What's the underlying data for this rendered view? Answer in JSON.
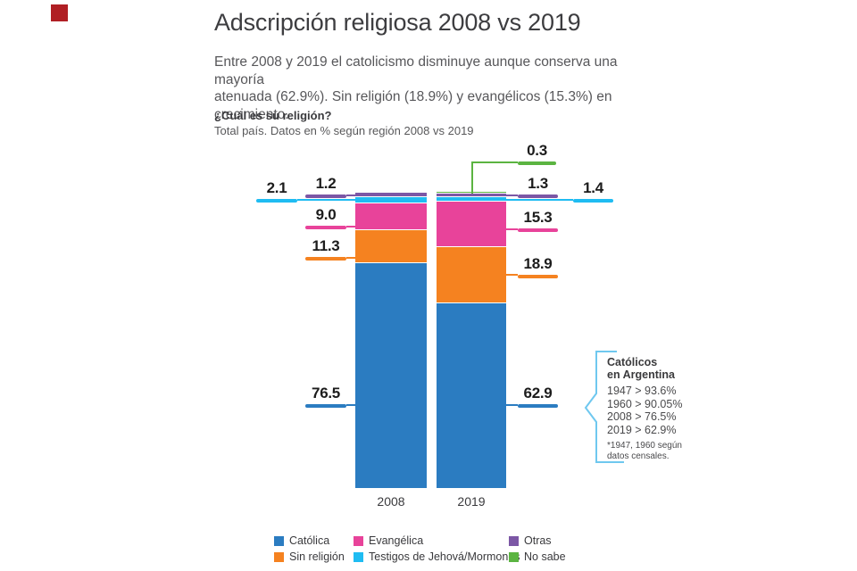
{
  "page": {
    "title": "Adscripción religiosa 2008 vs 2019",
    "subtitle_lines": [
      "Entre 2008 y 2019 el catolicismo disminuye aunque conserva una mayoría",
      "atenuada (62.9%). Sin religión (18.9%) y evangélicos (15.3%) en crecimiento."
    ],
    "question": "¿Cuál es su religión?",
    "note": "Total país. Datos en % según región 2008 vs 2019",
    "brand_color": "#b01f24"
  },
  "chart_data": {
    "type": "bar",
    "stacked": true,
    "unit": "%",
    "categories": [
      "2008",
      "2019"
    ],
    "series": [
      {
        "name": "Católica",
        "color": "#2b7cc1",
        "values": [
          76.5,
          62.9
        ]
      },
      {
        "name": "Sin religión",
        "color": "#f58220",
        "values": [
          11.3,
          18.9
        ]
      },
      {
        "name": "Evangélica",
        "color": "#e8439a",
        "values": [
          9.0,
          15.3
        ]
      },
      {
        "name": "Testigos de Jehová/Mormones",
        "color": "#1fbcf2",
        "values": [
          2.1,
          1.4
        ]
      },
      {
        "name": "Otras",
        "color": "#7c57a5",
        "values": [
          1.2,
          1.3
        ]
      },
      {
        "name": "No sabe",
        "color": "#5bb441",
        "values": [
          null,
          0.3
        ]
      }
    ],
    "annotations": [
      {
        "value": "2.1",
        "series": "Testigos de Jehová/Mormones",
        "category": "2008"
      },
      {
        "value": "1.2",
        "series": "Otras",
        "category": "2008"
      },
      {
        "value": "9.0",
        "series": "Evangélica",
        "category": "2008"
      },
      {
        "value": "11.3",
        "series": "Sin religión",
        "category": "2008"
      },
      {
        "value": "76.5",
        "series": "Católica",
        "category": "2008"
      },
      {
        "value": "0.3",
        "series": "No sabe",
        "category": "2019"
      },
      {
        "value": "1.3",
        "series": "Otras",
        "category": "2019"
      },
      {
        "value": "1.4",
        "series": "Testigos de Jehová/Mormones",
        "category": "2019"
      },
      {
        "value": "15.3",
        "series": "Evangélica",
        "category": "2019"
      },
      {
        "value": "18.9",
        "series": "Sin religión",
        "category": "2019"
      },
      {
        "value": "62.9",
        "series": "Católica",
        "category": "2019"
      }
    ],
    "ylim": [
      0,
      100
    ],
    "legend_position": "bottom",
    "xlabel": "",
    "ylabel": ""
  },
  "callout": {
    "heading_line1": "Católicos",
    "heading_line2": "en Argentina",
    "rows": [
      "1947 > 93.6%",
      "1960 > 90.05%",
      "2008 > 76.5%",
      "2019 > 62.9%"
    ],
    "footnote_line1": "*1947, 1960 según",
    "footnote_line2": "datos censales.",
    "bracket_color": "#6fc8ef"
  }
}
